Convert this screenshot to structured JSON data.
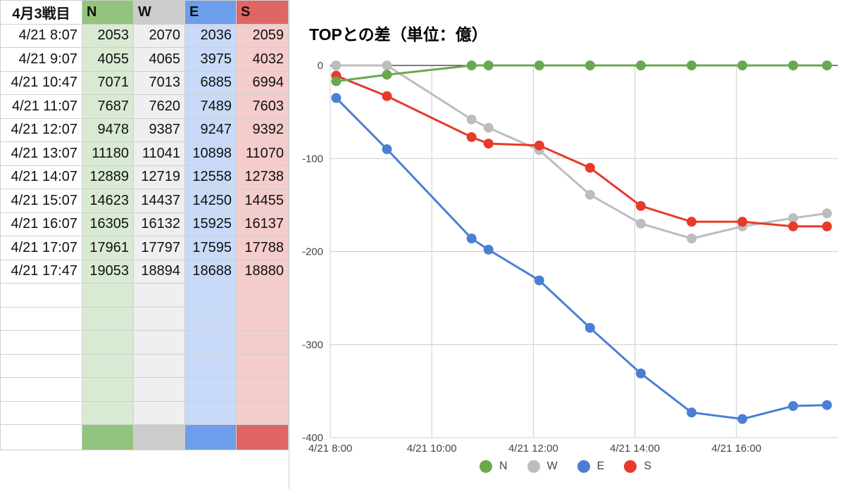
{
  "sheet": {
    "header": [
      "4月3戦目",
      "N",
      "W",
      "E",
      "S"
    ],
    "rows": [
      [
        "4/21 8:07",
        "2053",
        "2070",
        "2036",
        "2059"
      ],
      [
        "4/21 9:07",
        "4055",
        "4065",
        "3975",
        "4032"
      ],
      [
        "4/21 10:47",
        "7071",
        "7013",
        "6885",
        "6994"
      ],
      [
        "4/21 11:07",
        "7687",
        "7620",
        "7489",
        "7603"
      ],
      [
        "4/21 12:07",
        "9478",
        "9387",
        "9247",
        "9392"
      ],
      [
        "4/21 13:07",
        "11180",
        "11041",
        "10898",
        "11070"
      ],
      [
        "4/21 14:07",
        "12889",
        "12719",
        "12558",
        "12738"
      ],
      [
        "4/21 15:07",
        "14623",
        "14437",
        "14250",
        "14455"
      ],
      [
        "4/21 16:07",
        "16305",
        "16132",
        "15925",
        "16137"
      ],
      [
        "4/21 17:07",
        "17961",
        "17797",
        "17595",
        "17788"
      ],
      [
        "4/21 17:47",
        "19053",
        "18894",
        "18688",
        "18880"
      ]
    ]
  },
  "chart_data": {
    "type": "line",
    "title": "TOPとの差（単位：億）",
    "x": [
      "4/21 8:07",
      "4/21 9:07",
      "4/21 10:47",
      "4/21 11:07",
      "4/21 12:07",
      "4/21 13:07",
      "4/21 14:07",
      "4/21 15:07",
      "4/21 16:07",
      "4/21 17:07",
      "4/21 17:47"
    ],
    "series": [
      {
        "name": "N",
        "color": "#6aa84f",
        "values": [
          -17,
          -10,
          0,
          0,
          0,
          0,
          0,
          0,
          0,
          0,
          0
        ]
      },
      {
        "name": "W",
        "color": "#bdbdbd",
        "values": [
          0,
          0,
          -58,
          -67,
          -91,
          -139,
          -170,
          -186,
          -173,
          -164,
          -159
        ]
      },
      {
        "name": "E",
        "color": "#4a7fd4",
        "values": [
          -35,
          -90,
          -186,
          -198,
          -231,
          -282,
          -331,
          -373,
          -380,
          -366,
          -365
        ]
      },
      {
        "name": "S",
        "color": "#e8392b",
        "values": [
          -11,
          -33,
          -77,
          -84,
          -86,
          -110,
          -151,
          -168,
          -168,
          -173,
          -173
        ]
      }
    ],
    "ylim": [
      -400,
      0
    ],
    "yticks": [
      "0",
      "-100",
      "-200",
      "-300",
      "-400"
    ],
    "xticks": [
      "4/21 8:00",
      "4/21 10:00",
      "4/21 12:00",
      "4/21 14:00",
      "4/21 16:00"
    ],
    "legend": "bottom"
  }
}
